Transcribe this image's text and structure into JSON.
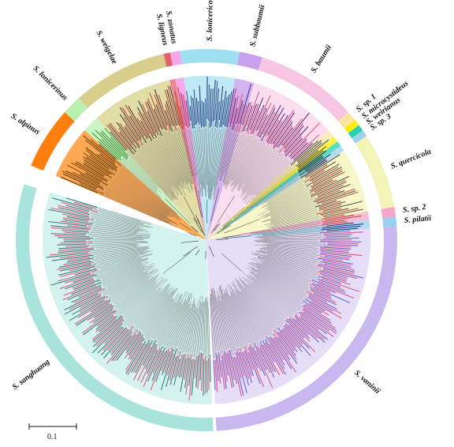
{
  "clades": [
    {
      "name": "S. vaninii",
      "start": 86,
      "end": 177,
      "color": "#c9b8f0",
      "bg": "#ddd2f6",
      "lines": [
        "#5a4fd0",
        "#e0436b"
      ]
    },
    {
      "name": "S. sanghuang",
      "start": 178,
      "end": 287,
      "color": "#a8e4dc",
      "bg": "#c6eee8",
      "lines": [
        "#1f6b6b",
        "#e0436b"
      ]
    },
    {
      "name": "S. alpinus",
      "start": 293,
      "end": 312,
      "color": "#ff7f0e",
      "bg": "#ff8c1a",
      "lines": [
        "#3a2a00",
        "#7a3d00"
      ]
    },
    {
      "name": "S. lonicerinus",
      "start": 312,
      "end": 318,
      "color": "#b9f0b0",
      "bg": "#b9f0b0",
      "lines": [
        "#2a8a2a",
        "#2a8a2a"
      ]
    },
    {
      "name": "S. weigelae",
      "start": 318,
      "end": 347,
      "color": "#d9cf8c",
      "bg": "#d8d08a",
      "lines": [
        "#2a2a2a",
        "#c0392b"
      ]
    },
    {
      "name": "S. ligneus",
      "start": 347,
      "end": 349,
      "color": "#e0606a",
      "bg": "#e0606a",
      "lines": [
        "#c0392b",
        "#c0392b"
      ]
    },
    {
      "name": "S. zonatus",
      "start": 349,
      "end": 352,
      "color": "#f4a6e8",
      "bg": "#f28fe4",
      "lines": [
        "#c0392b",
        "#7a1a6a"
      ]
    },
    {
      "name": "S. lonicericola",
      "start": 352,
      "end": 10,
      "color": "#9fe0f0",
      "bg": "#a8e2f2",
      "lines": [
        "#1a4a8a",
        "#1a1a6a"
      ]
    },
    {
      "name": "S. subbaumii",
      "start": 10,
      "end": 17,
      "color": "#c8a0ec",
      "bg": "#c39ae8",
      "lines": [
        "#3a1a7a",
        "#e0436b"
      ]
    },
    {
      "name": "S. baumii",
      "start": 17,
      "end": 48,
      "color": "#f6c6e4",
      "bg": "#f8d2ea",
      "lines": [
        "#3a1a7a",
        "#e0436b"
      ]
    },
    {
      "name": "S. sp. 1",
      "start": 48,
      "end": 51,
      "color": "#f7e6a0",
      "bg": "#f7e6a0",
      "lines": [
        "#3a3a3a",
        "#3a3a3a"
      ]
    },
    {
      "name": "S. microcystideus",
      "start": 51,
      "end": 53,
      "color": "#ffee00",
      "bg": "#ffee00",
      "lines": [
        "#3a3a3a",
        "#3a3a3a"
      ]
    },
    {
      "name": "S. weirianus",
      "start": 53,
      "end": 55,
      "color": "#28d0b0",
      "bg": "#28d0b0",
      "lines": [
        "#1a1a1a",
        "#1a1a1a"
      ]
    },
    {
      "name": "S. sp. 3",
      "start": 55,
      "end": 57,
      "color": "#9ad0f0",
      "bg": "#9ad0f0",
      "lines": [
        "#1a1a1a",
        "#1a1a1a"
      ]
    },
    {
      "name": "S. quercicola",
      "start": 57,
      "end": 80,
      "color": "#f4f4b8",
      "bg": "#f4f4b8",
      "lines": [
        "#3a3a3a",
        "#c0392b"
      ]
    },
    {
      "name": "S. sp. 2",
      "start": 80,
      "end": 83,
      "color": "#f4a6c8",
      "bg": "#f4a6c8",
      "lines": [
        "#c0392b",
        "#c0392b"
      ]
    },
    {
      "name": "S. pilatii",
      "start": 83,
      "end": 86,
      "color": "#9ad0f0",
      "bg": "#9ad0f0",
      "lines": [
        "#1a1a6a",
        "#1a1a6a"
      ]
    }
  ],
  "scale_bar": {
    "label": "0.1"
  }
}
